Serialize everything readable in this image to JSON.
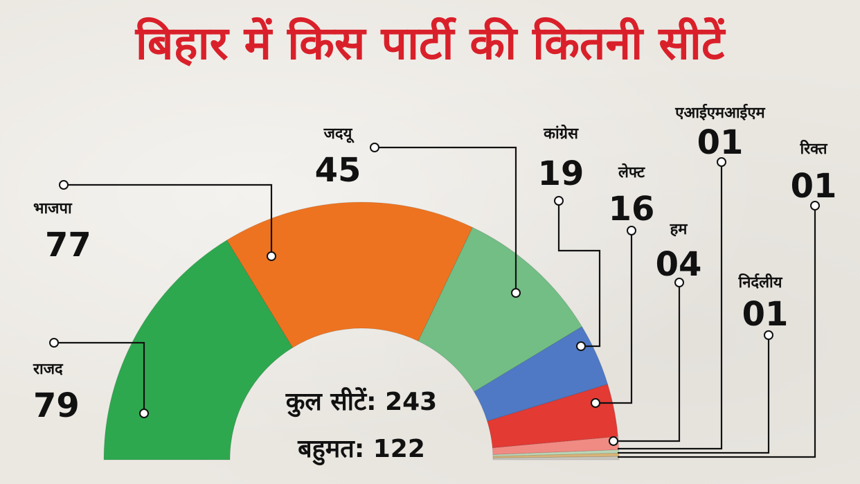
{
  "title": "बिहार में किस पार्टी की कितनी सीटें",
  "center": {
    "total_label": "कुल सीटें: 243",
    "majority_label": "बहुमत: 122"
  },
  "chart_data": {
    "type": "pie",
    "variant": "half-donut",
    "title": "बिहार में किस पार्टी की कितनी सीटें",
    "total_seats": 243,
    "majority": 122,
    "slices": [
      {
        "name": "राजद",
        "value": 79,
        "label": "79",
        "color": "#2ea84f"
      },
      {
        "name": "भाजपा",
        "value": 77,
        "label": "77",
        "color": "#ee7320"
      },
      {
        "name": "जदयू",
        "value": 45,
        "label": "45",
        "color": "#72be85"
      },
      {
        "name": "कांग्रेस",
        "value": 19,
        "label": "19",
        "color": "#4f79c4"
      },
      {
        "name": "लेफ्ट",
        "value": 16,
        "label": "16",
        "color": "#e33a34"
      },
      {
        "name": "हम",
        "value": 4,
        "label": "04",
        "color": "#f08b84"
      },
      {
        "name": "एआईएमआईएम",
        "value": 1,
        "label": "01",
        "color": "#b9d6b7"
      },
      {
        "name": "निर्दलीय",
        "value": 1,
        "label": "01",
        "color": "#d8b478"
      },
      {
        "name": "रिक्त",
        "value": 1,
        "label": "01",
        "color": "#c9c6bf"
      }
    ]
  }
}
